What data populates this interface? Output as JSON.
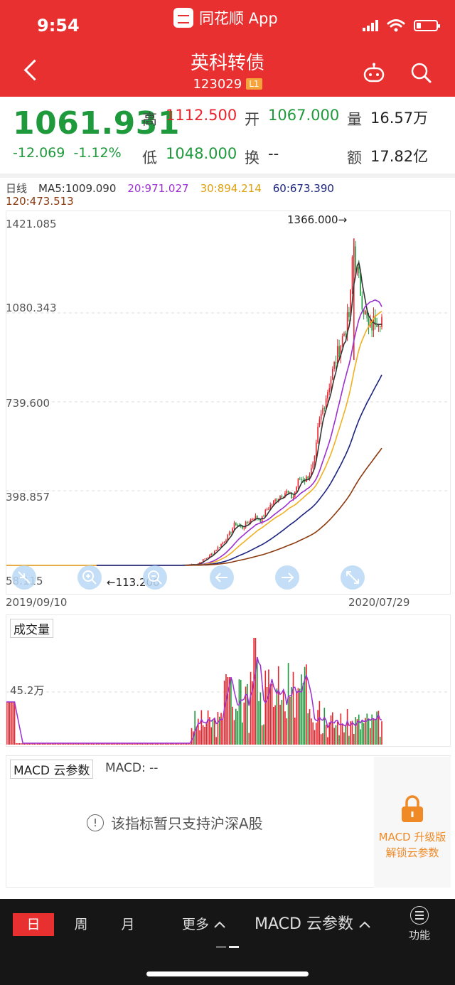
{
  "status_bar": {
    "time": "9:54",
    "app_label": "同花顺 App"
  },
  "header": {
    "name": "英科转债",
    "code": "123029",
    "level_badge": "L1"
  },
  "quote": {
    "price": "1061.931",
    "change": "-12.069",
    "change_pct": "-1.12%",
    "high_label": "高",
    "high": "1112.500",
    "low_label": "低",
    "low": "1048.000",
    "open_label": "开",
    "open": "1067.000",
    "turnover_label": "换",
    "turnover": "--",
    "volume_label": "量",
    "volume": "16.57万",
    "amount_label": "额",
    "amount": "17.82亿",
    "colors": {
      "down": "#1e9a3c",
      "up": "#e8232c"
    }
  },
  "ma_legend": {
    "period": "日线",
    "ma5": "MA5:1009.090",
    "ma20": "20:971.027",
    "ma30": "30:894.214",
    "ma60": "60:673.390",
    "ma120": "120:473.513",
    "colors": {
      "ma5": "#333333",
      "ma20": "#9b2fd0",
      "ma30": "#f0b020",
      "ma60": "#1a237e",
      "ma120": "#8b3a0f"
    }
  },
  "price_chart": {
    "y_labels": [
      "1421.085",
      "1080.343",
      "739.600",
      "398.857",
      "58.115"
    ],
    "max_annotation": "1366.000→",
    "min_annotation": "←113.200",
    "start_date": "2019/09/10",
    "end_date": "2020/07/29",
    "overlay_icons": [
      "arrow-collapse-icon",
      "zoom-in-icon",
      "zoom-out-icon",
      "arrow-left-icon",
      "arrow-right-icon",
      "expand-icon"
    ]
  },
  "volume": {
    "title": "成交量",
    "level_label": "45.2万"
  },
  "macd": {
    "title": "MACD 云参数",
    "value": "MACD: --",
    "notice": "该指标暂只支持沪深A股",
    "upgrade_line1": "MACD 升级版",
    "upgrade_line2": "解锁云参数"
  },
  "bottom_bar": {
    "day": "日",
    "week": "周",
    "month": "月",
    "more": "更多",
    "macd_param": "MACD 云参数",
    "function": "功能"
  },
  "chart_data": {
    "type": "candlestick",
    "title": "",
    "x": [
      "2019/09/10",
      "2020/07/29"
    ],
    "ylim": [
      58.115,
      1421.085
    ],
    "close_path": [
      [
        0,
        113.2
      ],
      [
        40,
        113.2
      ],
      [
        55,
        113.2
      ],
      [
        60,
        118
      ],
      [
        62,
        135
      ],
      [
        64,
        150
      ],
      [
        66,
        175
      ],
      [
        68,
        200
      ],
      [
        70,
        230
      ],
      [
        72,
        275
      ],
      [
        74,
        255
      ],
      [
        76,
        280
      ],
      [
        78,
        300
      ],
      [
        80,
        285
      ],
      [
        82,
        330
      ],
      [
        84,
        355
      ],
      [
        86,
        380
      ],
      [
        88,
        395
      ],
      [
        90,
        370
      ],
      [
        92,
        445
      ],
      [
        94,
        440
      ],
      [
        96,
        480
      ],
      [
        97,
        520
      ],
      [
        98,
        640
      ],
      [
        99,
        690
      ],
      [
        100,
        740
      ],
      [
        102,
        830
      ],
      [
        104,
        920
      ],
      [
        106,
        1000
      ],
      [
        108,
        1080
      ],
      [
        109,
        1366
      ],
      [
        110,
        1250
      ],
      [
        112,
        1120
      ],
      [
        114,
        1010
      ],
      [
        116,
        1060
      ],
      [
        118,
        1062
      ]
    ],
    "high": 1366.0,
    "low": 113.2,
    "volume_reference": "45.2万"
  }
}
